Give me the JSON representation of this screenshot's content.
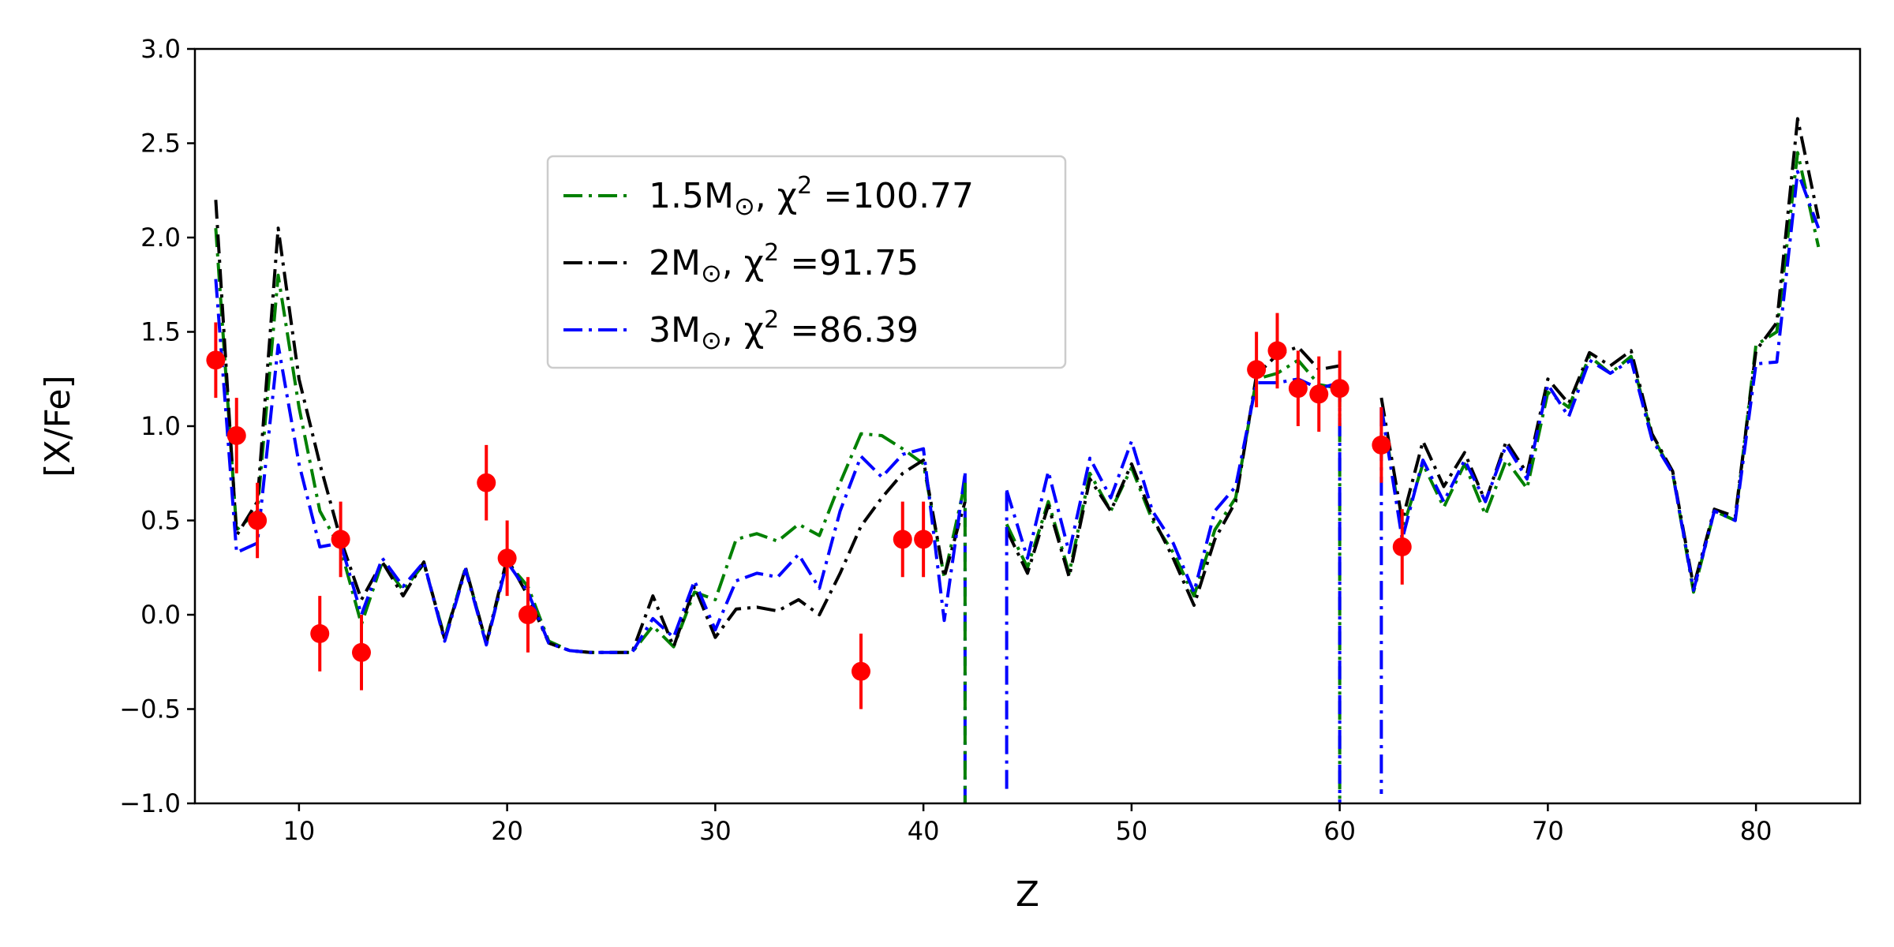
{
  "chart_data": {
    "type": "line",
    "title": "",
    "xlabel": "Z",
    "ylabel": "[X/Fe]",
    "xlim": [
      5,
      85
    ],
    "ylim": [
      -1.0,
      3.0
    ],
    "xticks": [
      10,
      20,
      30,
      40,
      50,
      60,
      70,
      80
    ],
    "yticks": [
      -1.0,
      -0.5,
      0.0,
      0.5,
      1.0,
      1.5,
      2.0,
      2.5,
      3.0
    ],
    "ytick_labels": [
      "−1.0",
      "−0.5",
      "0.0",
      "0.5",
      "1.0",
      "1.5",
      "2.0",
      "2.5",
      "3.0"
    ],
    "grid": false,
    "legend_position": "upper-center-left",
    "series": [
      {
        "name": "1.5M⊙, χ² =100.77",
        "legend": {
          "prefix": "1.5M",
          "sub": "⊙",
          "mid": ", χ",
          "sup": "2",
          "suffix": " =100.77"
        },
        "color": "#008000",
        "style": "dashdot",
        "x": [
          6,
          7,
          8,
          9,
          10,
          11,
          12,
          13,
          14,
          15,
          16,
          17,
          18,
          19,
          20,
          21,
          22,
          23,
          24,
          25,
          26,
          27,
          28,
          29,
          30,
          31,
          32,
          33,
          34,
          35,
          36,
          37,
          38,
          39,
          40,
          41,
          42,
          43,
          44,
          45,
          46,
          47,
          48,
          49,
          50,
          51,
          52,
          53,
          54,
          55,
          56,
          57,
          58,
          59,
          60,
          61,
          62,
          63,
          64,
          65,
          66,
          67,
          68,
          69,
          70,
          71,
          72,
          73,
          74,
          75,
          76,
          77,
          78,
          79,
          80,
          81,
          82,
          83
        ],
        "y": [
          2.05,
          0.45,
          0.55,
          1.8,
          1.1,
          0.55,
          0.35,
          -0.05,
          0.28,
          0.13,
          0.27,
          -0.12,
          0.25,
          -0.15,
          0.28,
          0.15,
          -0.14,
          -0.19,
          -0.2,
          -0.2,
          -0.2,
          -0.06,
          -0.17,
          0.12,
          0.08,
          0.4,
          0.43,
          0.39,
          0.48,
          0.42,
          0.7,
          0.96,
          0.95,
          0.88,
          0.8,
          0.2,
          0.7,
          null,
          0.48,
          0.25,
          0.6,
          0.22,
          0.75,
          0.55,
          0.78,
          0.5,
          0.33,
          0.1,
          0.45,
          0.62,
          1.25,
          1.28,
          1.35,
          1.22,
          1.2,
          null,
          1.1,
          0.45,
          0.8,
          0.57,
          0.8,
          0.53,
          0.82,
          0.67,
          1.18,
          1.1,
          1.37,
          1.28,
          1.37,
          0.95,
          0.75,
          0.12,
          0.55,
          0.5,
          1.43,
          1.5,
          2.45,
          1.95
        ]
      },
      {
        "name": "2M⊙, χ² =91.75",
        "legend": {
          "prefix": "2M",
          "sub": "⊙",
          "mid": ", χ",
          "sup": "2",
          "suffix": " =91.75"
        },
        "color": "#000000",
        "style": "dashdot",
        "x": [
          6,
          7,
          8,
          9,
          10,
          11,
          12,
          13,
          14,
          15,
          16,
          17,
          18,
          19,
          20,
          21,
          22,
          23,
          24,
          25,
          26,
          27,
          28,
          29,
          30,
          31,
          32,
          33,
          34,
          35,
          36,
          37,
          38,
          39,
          40,
          41,
          42,
          43,
          44,
          45,
          46,
          47,
          48,
          49,
          50,
          51,
          52,
          53,
          54,
          55,
          56,
          57,
          58,
          59,
          60,
          61,
          62,
          63,
          64,
          65,
          66,
          67,
          68,
          69,
          70,
          71,
          72,
          73,
          74,
          75,
          76,
          77,
          78,
          79,
          80,
          81,
          82,
          83
        ],
        "y": [
          2.2,
          0.42,
          0.6,
          2.05,
          1.25,
          0.8,
          0.4,
          0.08,
          0.28,
          0.1,
          0.28,
          -0.13,
          0.25,
          -0.15,
          0.3,
          0.1,
          -0.15,
          -0.19,
          -0.2,
          -0.2,
          -0.2,
          0.1,
          -0.17,
          0.15,
          -0.12,
          0.03,
          0.04,
          0.02,
          0.08,
          0.0,
          0.22,
          0.47,
          0.62,
          0.75,
          0.82,
          0.2,
          0.6,
          null,
          0.45,
          0.22,
          0.58,
          0.2,
          0.72,
          0.55,
          0.8,
          0.52,
          0.3,
          0.05,
          0.4,
          0.6,
          1.27,
          1.38,
          1.42,
          1.3,
          1.32,
          null,
          1.15,
          0.5,
          0.92,
          0.68,
          0.86,
          0.6,
          0.92,
          0.75,
          1.25,
          1.12,
          1.39,
          1.32,
          1.4,
          0.96,
          0.76,
          0.15,
          0.56,
          0.52,
          1.4,
          1.55,
          2.63,
          2.1
        ]
      },
      {
        "name": "3M⊙, χ² =86.39",
        "legend": {
          "prefix": "3M",
          "sub": "⊙",
          "mid": ", χ",
          "sup": "2",
          "suffix": " =86.39"
        },
        "color": "#0000ff",
        "style": "dashdot",
        "x": [
          6,
          7,
          8,
          9,
          10,
          11,
          12,
          13,
          14,
          15,
          16,
          17,
          18,
          19,
          20,
          21,
          22,
          23,
          24,
          25,
          26,
          27,
          28,
          29,
          30,
          31,
          32,
          33,
          34,
          35,
          36,
          37,
          38,
          39,
          40,
          41,
          42,
          43,
          44,
          45,
          46,
          47,
          48,
          49,
          50,
          51,
          52,
          53,
          54,
          55,
          56,
          57,
          58,
          59,
          60,
          61,
          62,
          63,
          64,
          65,
          66,
          67,
          68,
          69,
          70,
          71,
          72,
          73,
          74,
          75,
          76,
          77,
          78,
          79,
          80,
          81,
          82,
          83
        ],
        "y": [
          1.78,
          0.33,
          0.38,
          1.43,
          0.8,
          0.36,
          0.38,
          0.0,
          0.3,
          0.15,
          0.28,
          -0.14,
          0.24,
          -0.16,
          0.28,
          0.12,
          -0.15,
          -0.19,
          -0.2,
          -0.2,
          -0.2,
          -0.02,
          -0.12,
          0.18,
          -0.08,
          0.18,
          0.22,
          0.2,
          0.32,
          0.14,
          0.55,
          0.84,
          0.73,
          0.85,
          0.88,
          -0.03,
          0.75,
          null,
          0.66,
          0.3,
          0.76,
          0.33,
          0.83,
          0.62,
          0.92,
          0.55,
          0.38,
          0.12,
          0.55,
          0.68,
          1.23,
          1.23,
          1.25,
          1.2,
          1.23,
          null,
          1.1,
          0.4,
          0.82,
          0.6,
          0.82,
          0.6,
          0.9,
          0.72,
          1.22,
          1.05,
          1.35,
          1.28,
          1.35,
          0.93,
          0.75,
          0.13,
          0.55,
          0.5,
          1.33,
          1.34,
          2.35,
          2.05
        ]
      }
    ],
    "drops": [
      {
        "series": 2,
        "x": [
          42,
          42
        ],
        "y": [
          0.75,
          -1.0
        ]
      },
      {
        "series": 0,
        "x": [
          42,
          42
        ],
        "y": [
          0.7,
          -1.0
        ]
      },
      {
        "series": 2,
        "x": [
          44,
          44
        ],
        "y": [
          0.65,
          -0.95
        ]
      },
      {
        "series": 0,
        "x": [
          60,
          60
        ],
        "y": [
          1.2,
          -1.0
        ]
      },
      {
        "series": 2,
        "x": [
          60,
          60
        ],
        "y": [
          1.23,
          -1.0
        ]
      },
      {
        "series": 2,
        "x": [
          62,
          62
        ],
        "y": [
          1.1,
          -0.95
        ]
      }
    ],
    "observations": {
      "name": "observed",
      "color": "#ff0000",
      "points": [
        {
          "x": 6,
          "y": 1.35,
          "err": 0.2
        },
        {
          "x": 7,
          "y": 0.95,
          "err": 0.2
        },
        {
          "x": 8,
          "y": 0.5,
          "err": 0.2
        },
        {
          "x": 11,
          "y": -0.1,
          "err": 0.2
        },
        {
          "x": 12,
          "y": 0.4,
          "err": 0.2
        },
        {
          "x": 13,
          "y": -0.2,
          "err": 0.2
        },
        {
          "x": 19,
          "y": 0.7,
          "err": 0.2
        },
        {
          "x": 20,
          "y": 0.3,
          "err": 0.2
        },
        {
          "x": 21,
          "y": 0.0,
          "err": 0.2
        },
        {
          "x": 37,
          "y": -0.3,
          "err": 0.2
        },
        {
          "x": 39,
          "y": 0.4,
          "err": 0.2
        },
        {
          "x": 40,
          "y": 0.4,
          "err": 0.2
        },
        {
          "x": 56,
          "y": 1.3,
          "err": 0.2
        },
        {
          "x": 57,
          "y": 1.4,
          "err": 0.2
        },
        {
          "x": 58,
          "y": 1.2,
          "err": 0.2
        },
        {
          "x": 59,
          "y": 1.17,
          "err": 0.2
        },
        {
          "x": 60,
          "y": 1.2,
          "err": 0.2
        },
        {
          "x": 62,
          "y": 0.9,
          "err": 0.2
        },
        {
          "x": 63,
          "y": 0.36,
          "err": 0.2
        }
      ]
    }
  }
}
